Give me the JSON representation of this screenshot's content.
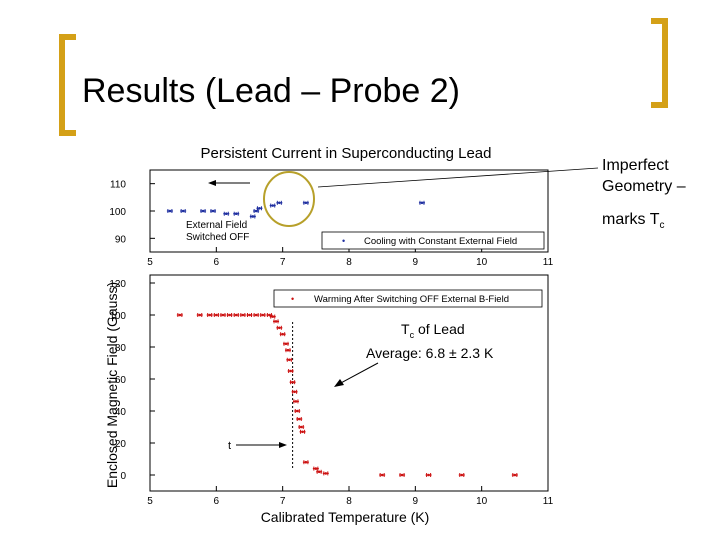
{
  "slide": {
    "title": "Results (Lead – Probe 2)",
    "note_line1": "Imperfect",
    "note_line2": "Geometry –",
    "note_line3": "marks T",
    "note_sub": "c",
    "accent_color": "#d4a017",
    "circle_color": "#b7a02a"
  },
  "chart_data": [
    {
      "type": "scatter",
      "title": "Persistent Current in Superconducting Lead",
      "xlim": [
        5,
        11
      ],
      "ylim": [
        85,
        115
      ],
      "x_ticks": [
        "5",
        "6",
        "7",
        "8",
        "9",
        "10",
        "11"
      ],
      "y_ticks": [
        "90",
        "100",
        "110"
      ],
      "legend": "Cooling with Constant External Field",
      "legend_position": "bottom-right",
      "annotation": "External Field Switched OFF",
      "color": "#1f2fa0",
      "series": [
        {
          "name": "Cooling with Constant External Field",
          "x": [
            5.3,
            5.5,
            5.8,
            5.95,
            6.15,
            6.3,
            6.55,
            6.6,
            6.65,
            6.85,
            6.95,
            7.35,
            9.1
          ],
          "y": [
            100,
            100,
            100,
            100,
            99,
            99,
            98,
            100,
            101,
            102,
            103,
            103,
            103
          ]
        }
      ]
    },
    {
      "type": "scatter",
      "xlim": [
        5,
        11
      ],
      "ylim": [
        -10,
        125
      ],
      "x_ticks": [
        "5",
        "6",
        "7",
        "8",
        "9",
        "10",
        "11"
      ],
      "y_ticks": [
        "0",
        "20",
        "40",
        "60",
        "80",
        "100",
        "120"
      ],
      "xlabel": "Calibrated Temperature (K)",
      "ylabel": "Enclosed Magnetic Field (Gauss)",
      "legend": "Warming After Switching OFF External B-Field",
      "legend_position": "top-right",
      "tc_label": "T",
      "tc_sub": "c",
      "tc_label_rest": " of Lead",
      "average_text": "Average: 6.8 ± 2.3 K",
      "arrow_label": "t",
      "tc_line_x": 7.15,
      "color": "#cc1111",
      "series": [
        {
          "name": "Warming After Switching OFF External B-Field",
          "x": [
            5.45,
            5.75,
            5.9,
            6.0,
            6.1,
            6.2,
            6.3,
            6.4,
            6.5,
            6.6,
            6.7,
            6.8,
            6.85,
            6.9,
            6.95,
            7.0,
            7.05,
            7.08,
            7.1,
            7.12,
            7.15,
            7.18,
            7.2,
            7.22,
            7.25,
            7.28,
            7.3,
            7.35,
            7.5,
            7.55,
            7.65,
            8.5,
            8.8,
            9.2,
            9.7,
            10.5
          ],
          "y": [
            100,
            100,
            100,
            100,
            100,
            100,
            100,
            100,
            100,
            100,
            100,
            100,
            99,
            96,
            92,
            88,
            82,
            78,
            72,
            65,
            58,
            52,
            46,
            40,
            35,
            30,
            27,
            8,
            4,
            2,
            1,
            0,
            0,
            0,
            0,
            0
          ]
        }
      ]
    }
  ]
}
